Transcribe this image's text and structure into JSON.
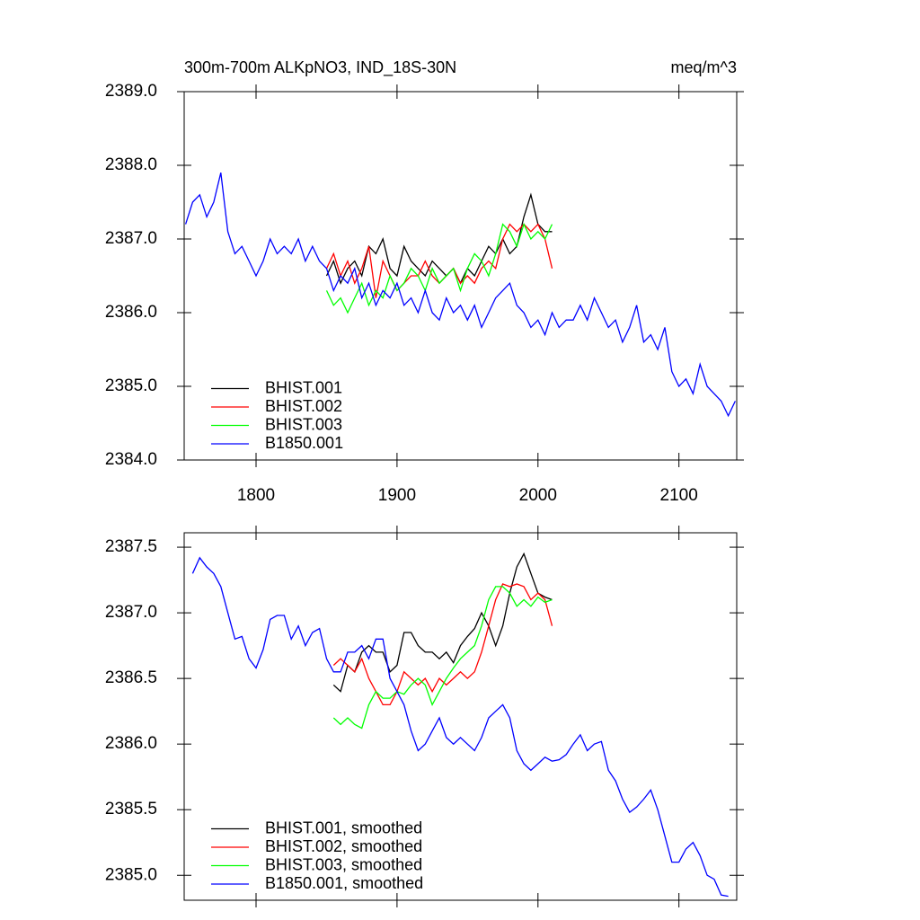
{
  "chart_data": [
    {
      "type": "line",
      "title": "300m-700m ALKpNO3, IND_18S-30N",
      "units": "meq/m^3",
      "xlim": [
        1749,
        2141
      ],
      "xticks": [
        1800,
        1900,
        2000,
        2100
      ],
      "ylim": [
        2384,
        2389
      ],
      "yticks": [
        {
          "value": 2384,
          "label": "2384.0"
        },
        {
          "value": 2385,
          "label": "2385.0"
        },
        {
          "value": 2386,
          "label": "2386.0"
        },
        {
          "value": 2387,
          "label": "2387.0"
        },
        {
          "value": 2388,
          "label": "2388.0"
        },
        {
          "value": 2389,
          "label": "2389.0"
        }
      ],
      "legend": "lower left",
      "series": [
        {
          "name": "BHIST.001",
          "color": "#000000",
          "x": [
            1850,
            1855,
            1860,
            1865,
            1870,
            1875,
            1880,
            1885,
            1890,
            1895,
            1900,
            1905,
            1910,
            1915,
            1920,
            1925,
            1930,
            1935,
            1940,
            1945,
            1950,
            1955,
            1960,
            1965,
            1970,
            1975,
            1980,
            1985,
            1990,
            1995,
            2000,
            2005,
            2010
          ],
          "values": [
            2386.5,
            2386.7,
            2386.4,
            2386.6,
            2386.7,
            2386.5,
            2386.9,
            2386.8,
            2387.0,
            2386.6,
            2386.5,
            2386.9,
            2386.7,
            2386.6,
            2386.5,
            2386.7,
            2386.6,
            2386.5,
            2386.6,
            2386.4,
            2386.6,
            2386.5,
            2386.7,
            2386.9,
            2386.8,
            2387.0,
            2386.8,
            2386.9,
            2387.3,
            2387.6,
            2387.2,
            2387.1,
            2387.1
          ]
        },
        {
          "name": "BHIST.002",
          "color": "#ff0000",
          "x": [
            1850,
            1855,
            1860,
            1865,
            1870,
            1875,
            1880,
            1885,
            1890,
            1895,
            1900,
            1905,
            1910,
            1915,
            1920,
            1925,
            1930,
            1935,
            1940,
            1945,
            1950,
            1955,
            1960,
            1965,
            1970,
            1975,
            1980,
            1985,
            1990,
            1995,
            2000,
            2005,
            2010
          ],
          "values": [
            2386.6,
            2386.8,
            2386.5,
            2386.7,
            2386.4,
            2386.6,
            2386.9,
            2386.2,
            2386.7,
            2386.5,
            2386.3,
            2386.4,
            2386.5,
            2386.5,
            2386.7,
            2386.5,
            2386.4,
            2386.5,
            2386.6,
            2386.4,
            2386.5,
            2386.4,
            2386.6,
            2386.7,
            2386.6,
            2387.0,
            2387.2,
            2387.1,
            2387.2,
            2387.1,
            2387.2,
            2387.0,
            2386.6
          ]
        },
        {
          "name": "BHIST.003",
          "color": "#00ff00",
          "x": [
            1850,
            1855,
            1860,
            1865,
            1870,
            1875,
            1880,
            1885,
            1890,
            1895,
            1900,
            1905,
            1910,
            1915,
            1920,
            1925,
            1930,
            1935,
            1940,
            1945,
            1950,
            1955,
            1960,
            1965,
            1970,
            1975,
            1980,
            1985,
            1990,
            1995,
            2000,
            2005,
            2010
          ],
          "values": [
            2386.3,
            2386.1,
            2386.2,
            2386.0,
            2386.2,
            2386.4,
            2386.1,
            2386.3,
            2386.2,
            2386.5,
            2386.3,
            2386.4,
            2386.6,
            2386.5,
            2386.3,
            2386.6,
            2386.4,
            2386.5,
            2386.6,
            2386.3,
            2386.6,
            2386.8,
            2386.7,
            2386.5,
            2386.8,
            2387.2,
            2387.1,
            2386.9,
            2387.2,
            2387.0,
            2387.1,
            2387.0,
            2387.2
          ]
        },
        {
          "name": "B1850.001",
          "color": "#0000ff",
          "x": [
            1750,
            1755,
            1760,
            1765,
            1770,
            1775,
            1780,
            1785,
            1790,
            1795,
            1800,
            1805,
            1810,
            1815,
            1820,
            1825,
            1830,
            1835,
            1840,
            1845,
            1850,
            1855,
            1860,
            1865,
            1870,
            1875,
            1880,
            1885,
            1890,
            1895,
            1900,
            1905,
            1910,
            1915,
            1920,
            1925,
            1930,
            1935,
            1940,
            1945,
            1950,
            1955,
            1960,
            1965,
            1970,
            1975,
            1980,
            1985,
            1990,
            1995,
            2000,
            2005,
            2010,
            2015,
            2020,
            2025,
            2030,
            2035,
            2040,
            2045,
            2050,
            2055,
            2060,
            2065,
            2070,
            2075,
            2080,
            2085,
            2090,
            2095,
            2100,
            2105,
            2110,
            2115,
            2120,
            2125,
            2130,
            2135,
            2140
          ],
          "values": [
            2387.2,
            2387.5,
            2387.6,
            2387.3,
            2387.5,
            2387.9,
            2387.1,
            2386.8,
            2386.9,
            2386.7,
            2386.5,
            2386.7,
            2387.0,
            2386.8,
            2386.9,
            2386.8,
            2387.0,
            2386.7,
            2386.9,
            2386.7,
            2386.6,
            2386.3,
            2386.5,
            2386.4,
            2386.6,
            2386.2,
            2386.4,
            2386.1,
            2386.3,
            2386.2,
            2386.4,
            2386.1,
            2386.2,
            2386.0,
            2386.3,
            2386.0,
            2385.9,
            2386.2,
            2386.0,
            2386.1,
            2385.9,
            2386.1,
            2385.8,
            2386.0,
            2386.2,
            2386.3,
            2386.4,
            2386.1,
            2386.0,
            2385.8,
            2385.9,
            2385.7,
            2386.0,
            2385.8,
            2385.9,
            2385.9,
            2386.1,
            2385.9,
            2386.2,
            2386.0,
            2385.8,
            2385.9,
            2385.6,
            2385.8,
            2386.1,
            2385.6,
            2385.7,
            2385.5,
            2385.8,
            2385.2,
            2385.0,
            2385.1,
            2384.9,
            2385.3,
            2385.0,
            2384.9,
            2384.8,
            2384.6,
            2384.8
          ]
        }
      ]
    },
    {
      "type": "line",
      "xlim": [
        1749,
        2141
      ],
      "xticks": [
        1800,
        1900,
        2000,
        2100
      ],
      "ylim": [
        2384.81,
        2387.61
      ],
      "yticks": [
        {
          "value": 2385,
          "label": "2385.0"
        },
        2385.5,
        {
          "value": 2386,
          "label": "2386.0"
        },
        2386.5,
        {
          "value": 2387,
          "label": "2387.0"
        },
        2387.5
      ],
      "legend": "lower left",
      "series": [
        {
          "name": "BHIST.001, smoothed",
          "color": "#000000",
          "x": [
            1855,
            1860,
            1865,
            1870,
            1875,
            1880,
            1885,
            1890,
            1895,
            1900,
            1905,
            1910,
            1915,
            1920,
            1925,
            1930,
            1935,
            1940,
            1945,
            1950,
            1955,
            1960,
            1965,
            1970,
            1975,
            1980,
            1985,
            1990,
            1995,
            2000,
            2005,
            2010
          ],
          "values": [
            2386.45,
            2386.4,
            2386.6,
            2386.55,
            2386.7,
            2386.75,
            2386.7,
            2386.7,
            2386.55,
            2386.6,
            2386.85,
            2386.85,
            2386.75,
            2386.7,
            2386.7,
            2386.65,
            2386.7,
            2386.62,
            2386.75,
            2386.82,
            2386.88,
            2387.0,
            2386.9,
            2386.75,
            2386.9,
            2387.15,
            2387.35,
            2387.45,
            2387.3,
            2387.15,
            2387.12,
            2387.1
          ]
        },
        {
          "name": "BHIST.002, smoothed",
          "color": "#ff0000",
          "x": [
            1855,
            1860,
            1865,
            1870,
            1875,
            1880,
            1885,
            1890,
            1895,
            1900,
            1905,
            1910,
            1915,
            1920,
            1925,
            1930,
            1935,
            1940,
            1945,
            1950,
            1955,
            1960,
            1965,
            1970,
            1975,
            1980,
            1985,
            1990,
            1995,
            2000,
            2005,
            2010
          ],
          "values": [
            2386.6,
            2386.65,
            2386.6,
            2386.55,
            2386.65,
            2386.5,
            2386.4,
            2386.3,
            2386.3,
            2386.4,
            2386.55,
            2386.5,
            2386.45,
            2386.5,
            2386.4,
            2386.5,
            2386.45,
            2386.5,
            2386.55,
            2386.5,
            2386.55,
            2386.7,
            2386.9,
            2387.1,
            2387.22,
            2387.2,
            2387.22,
            2387.2,
            2387.1,
            2387.15,
            2387.1,
            2386.9
          ]
        },
        {
          "name": "BHIST.003, smoothed",
          "color": "#00ff00",
          "x": [
            1855,
            1860,
            1865,
            1870,
            1875,
            1880,
            1885,
            1890,
            1895,
            1900,
            1905,
            1910,
            1915,
            1920,
            1925,
            1930,
            1935,
            1940,
            1945,
            1950,
            1955,
            1960,
            1965,
            1970,
            1975,
            1980,
            1985,
            1990,
            1995,
            2000,
            2005,
            2010
          ],
          "values": [
            2386.2,
            2386.15,
            2386.2,
            2386.15,
            2386.12,
            2386.3,
            2386.4,
            2386.35,
            2386.35,
            2386.4,
            2386.38,
            2386.45,
            2386.5,
            2386.45,
            2386.3,
            2386.4,
            2386.5,
            2386.58,
            2386.65,
            2386.7,
            2386.75,
            2386.9,
            2387.1,
            2387.2,
            2387.2,
            2387.15,
            2387.05,
            2387.1,
            2387.05,
            2387.12,
            2387.08,
            2387.1
          ]
        },
        {
          "name": "B1850.001, smoothed",
          "color": "#0000ff",
          "x": [
            1755,
            1760,
            1765,
            1770,
            1775,
            1780,
            1785,
            1790,
            1795,
            1800,
            1805,
            1810,
            1815,
            1820,
            1825,
            1830,
            1835,
            1840,
            1845,
            1850,
            1855,
            1860,
            1865,
            1870,
            1875,
            1880,
            1885,
            1890,
            1895,
            1900,
            1905,
            1910,
            1915,
            1920,
            1925,
            1930,
            1935,
            1940,
            1945,
            1950,
            1955,
            1960,
            1965,
            1970,
            1975,
            1980,
            1985,
            1990,
            1995,
            2000,
            2005,
            2010,
            2015,
            2020,
            2025,
            2030,
            2035,
            2040,
            2045,
            2050,
            2055,
            2060,
            2065,
            2070,
            2075,
            2080,
            2085,
            2090,
            2095,
            2100,
            2105,
            2110,
            2115,
            2120,
            2125,
            2130,
            2135
          ],
          "values": [
            2387.3,
            2387.42,
            2387.35,
            2387.3,
            2387.2,
            2387.0,
            2386.8,
            2386.82,
            2386.65,
            2386.58,
            2386.72,
            2386.95,
            2386.98,
            2386.98,
            2386.8,
            2386.9,
            2386.75,
            2386.85,
            2386.88,
            2386.65,
            2386.55,
            2386.55,
            2386.7,
            2386.7,
            2386.75,
            2386.65,
            2386.8,
            2386.8,
            2386.5,
            2386.4,
            2386.3,
            2386.1,
            2385.95,
            2386.0,
            2386.1,
            2386.2,
            2386.05,
            2386.0,
            2386.05,
            2386.0,
            2385.95,
            2386.05,
            2386.2,
            2386.25,
            2386.3,
            2386.2,
            2385.95,
            2385.85,
            2385.8,
            2385.85,
            2385.9,
            2385.87,
            2385.88,
            2385.92,
            2386.0,
            2386.07,
            2385.95,
            2386.0,
            2386.02,
            2385.8,
            2385.72,
            2385.58,
            2385.48,
            2385.52,
            2385.58,
            2385.65,
            2385.5,
            2385.3,
            2385.1,
            2385.1,
            2385.2,
            2385.25,
            2385.15,
            2385.0,
            2384.97,
            2384.85,
            2384.84
          ]
        }
      ]
    }
  ]
}
